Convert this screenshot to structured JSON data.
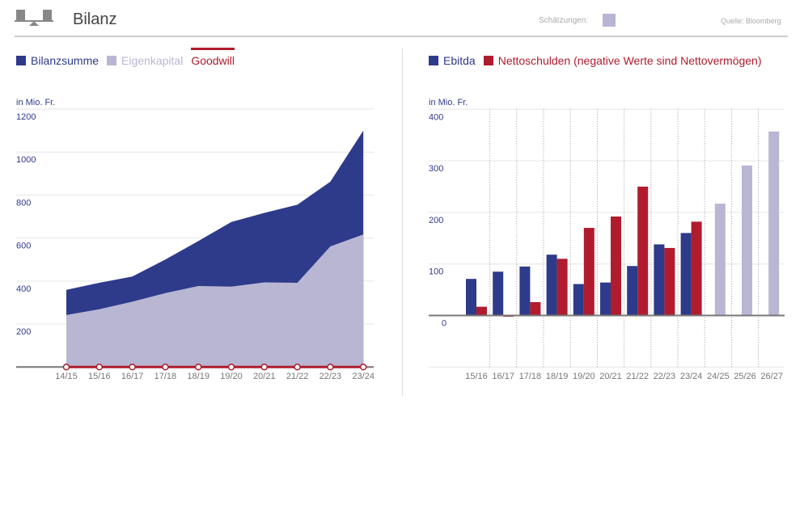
{
  "header": {
    "title": "Bilanz",
    "icon": "balance-scale-icon",
    "estimates_label": "Schätzungen:",
    "source": "Quelle: Bloomberg"
  },
  "colors": {
    "navy": "#2e3a8a",
    "lavender": "#b8b6d3",
    "red": "#b01c2e",
    "estimate": "#b8b6d3"
  },
  "chart_data": [
    {
      "type": "area",
      "unit_label": "in Mio. Fr.",
      "legend": [
        "Bilanzsumme",
        "Eigenkapital",
        "Goodwill"
      ],
      "categories": [
        "14/15",
        "15/16",
        "16/17",
        "17/18",
        "18/19",
        "19/20",
        "20/21",
        "21/22",
        "22/23",
        "23/24"
      ],
      "series": [
        {
          "name": "Bilanzsumme",
          "values": [
            359,
            392,
            421,
            500,
            586,
            675,
            717,
            755,
            862,
            1100
          ]
        },
        {
          "name": "Eigenkapital",
          "values": [
            242,
            269,
            304,
            344,
            377,
            374,
            394,
            392,
            561,
            617
          ]
        },
        {
          "name": "Goodwill",
          "values": [
            0,
            0,
            0,
            0,
            0,
            0,
            0,
            0,
            0,
            0
          ]
        }
      ],
      "yticks": [
        200,
        400,
        600,
        800,
        1000,
        1200
      ],
      "ylim": [
        0,
        1200
      ],
      "grid": true,
      "legend_position": "top-left"
    },
    {
      "type": "bar",
      "unit_label": "in Mio. Fr.",
      "legend": [
        "Ebitda",
        "Nettoschulden (negative Werte sind Nettovermögen)"
      ],
      "categories": [
        "15/16",
        "16/17",
        "17/18",
        "18/19",
        "19/20",
        "20/21",
        "21/22",
        "22/23",
        "23/24",
        "24/25",
        "25/26",
        "26/27"
      ],
      "series": [
        {
          "name": "Ebitda",
          "values": [
            71,
            85,
            95,
            118,
            61,
            64,
            96,
            138,
            160,
            217,
            291,
            357
          ]
        },
        {
          "name": "Nettoschulden (negative Werte sind Nettovermögen)",
          "values": [
            17,
            -2,
            26,
            110,
            170,
            192,
            250,
            131,
            182,
            null,
            null,
            null
          ]
        }
      ],
      "estimates": [
        "24/25",
        "25/26",
        "26/27"
      ],
      "yticks": [
        0,
        100,
        200,
        300,
        400
      ],
      "ylim": [
        -100,
        400
      ],
      "grid": true,
      "legend_position": "top-left"
    }
  ]
}
